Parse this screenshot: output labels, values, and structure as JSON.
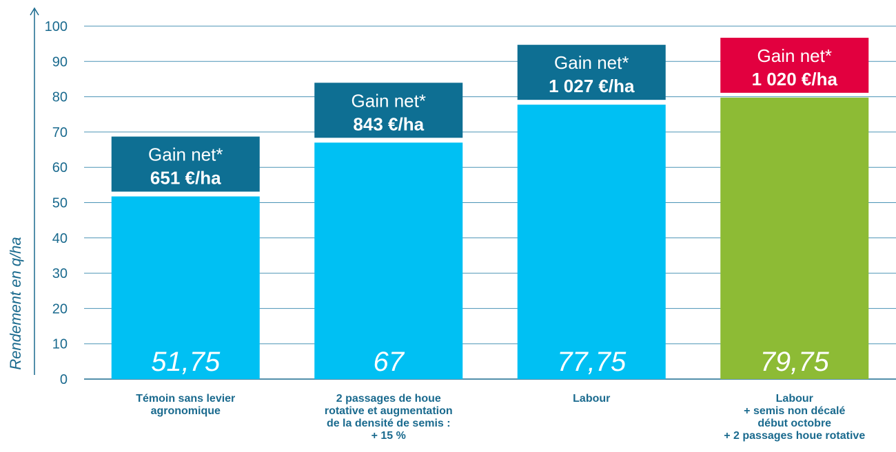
{
  "chart_data": {
    "type": "bar",
    "ylabel": "Rendement en q/ha",
    "ylim": [
      0,
      100
    ],
    "yticks": [
      0,
      10,
      20,
      30,
      40,
      50,
      60,
      70,
      80,
      90,
      100
    ],
    "grid": true,
    "categories": [
      [
        "Témoin sans levier",
        "agronomique"
      ],
      [
        "2 passages de houe",
        "rotative et augmentation",
        "de la densité de semis :",
        "+ 15 %"
      ],
      [
        "Labour"
      ],
      [
        "Labour",
        "+ semis non décalé",
        "début octobre",
        "+ 2 passages houe rotative"
      ]
    ],
    "values": [
      51.75,
      67,
      77.75,
      79.75
    ],
    "value_labels": [
      "51,75",
      "67",
      "77,75",
      "79,75"
    ],
    "bar_colors": [
      "#00c0f3",
      "#00c0f3",
      "#00c0f3",
      "#8dbb35"
    ],
    "annotations": [
      {
        "title": "Gain net*",
        "amount": "651 €/ha",
        "color": "#0e6f93"
      },
      {
        "title": "Gain net*",
        "amount": "843 €/ha",
        "color": "#0e6f93"
      },
      {
        "title": "Gain net*",
        "amount": "1 027 €/ha",
        "color": "#0e6f93"
      },
      {
        "title": "Gain net*",
        "amount": "1 020 €/ha",
        "color": "#e2003f"
      }
    ],
    "axis_color": "#1a6a8e"
  }
}
